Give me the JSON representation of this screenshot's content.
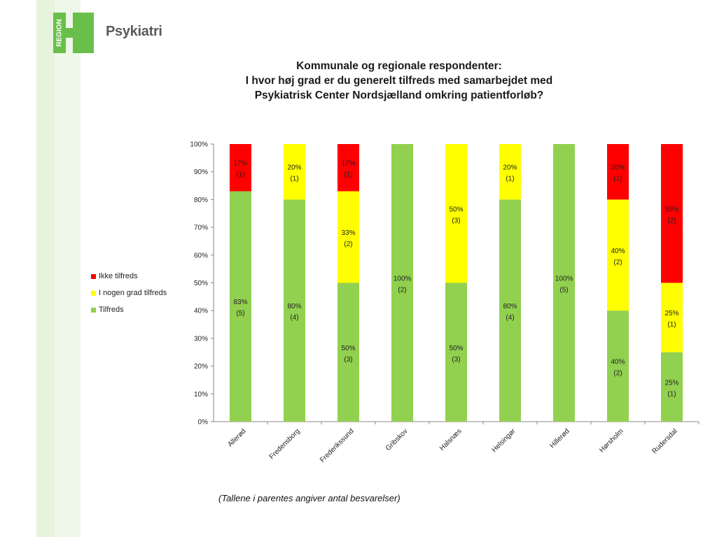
{
  "header": {
    "logo_text": "REGION",
    "brand": "Psykiatri"
  },
  "colors": {
    "tilfreds": "#92d050",
    "nogen_grad": "#ffff00",
    "ikke": "#ff0000",
    "logo_green": "#6abf4b"
  },
  "chart_data": {
    "type": "bar",
    "stacked": true,
    "title_lines": [
      "Kommunale og regionale respondenter:",
      "I hvor høj grad er du generelt tilfreds med samarbejdet med",
      "Psykiatrisk Center Nordsjælland omkring patientforløb?"
    ],
    "categories": [
      "Allerød",
      "Fredensborg",
      "Frederikssund",
      "Gribskov",
      "Halsnæs",
      "Helsingør",
      "Hillerød",
      "Hørsholm",
      "Rudersdal"
    ],
    "y_ticks": [
      "0%",
      "10%",
      "20%",
      "30%",
      "40%",
      "50%",
      "60%",
      "70%",
      "80%",
      "90%",
      "100%"
    ],
    "ylim": [
      0,
      100
    ],
    "legend_position": "left",
    "series": [
      {
        "name": "Tilfreds",
        "color": "#92d050",
        "values": [
          83,
          80,
          50,
          100,
          50,
          80,
          100,
          40,
          25
        ],
        "labels": [
          "83%",
          "80%",
          "50%",
          "100%",
          "50%",
          "80%",
          "100%",
          "40%",
          "25%"
        ],
        "counts": [
          "(5)",
          "(4)",
          "(3)",
          "(2)",
          "(3)",
          "(4)",
          "(5)",
          "(2)",
          "(1)"
        ]
      },
      {
        "name": "I nogen grad tilfreds",
        "color": "#ffff00",
        "values": [
          0,
          20,
          33,
          0,
          50,
          20,
          0,
          40,
          25
        ],
        "labels": [
          "",
          "20%",
          "33%",
          "",
          "50%",
          "20%",
          "",
          "40%",
          "25%"
        ],
        "counts": [
          "",
          "(1)",
          "(2)",
          "",
          "(3)",
          "(1)",
          "",
          "(2)",
          "(1)"
        ]
      },
      {
        "name": "Ikke tilfreds",
        "color": "#ff0000",
        "values": [
          17,
          0,
          17,
          0,
          0,
          0,
          0,
          20,
          50
        ],
        "labels": [
          "17%",
          "",
          "17%",
          "",
          "",
          "",
          "",
          "20%",
          "50%"
        ],
        "counts": [
          "(1)",
          "",
          "(1)",
          "",
          "",
          "",
          "",
          "(1)",
          "(2)"
        ]
      }
    ]
  },
  "legend": {
    "items": [
      {
        "name": "Ikke tilfreds",
        "color": "#ff0000"
      },
      {
        "name": "I nogen grad tilfreds",
        "color": "#ffff00"
      },
      {
        "name": "Tilfreds",
        "color": "#92d050"
      }
    ]
  },
  "footnote": "(Tallene i parentes angiver antal besvarelser)"
}
